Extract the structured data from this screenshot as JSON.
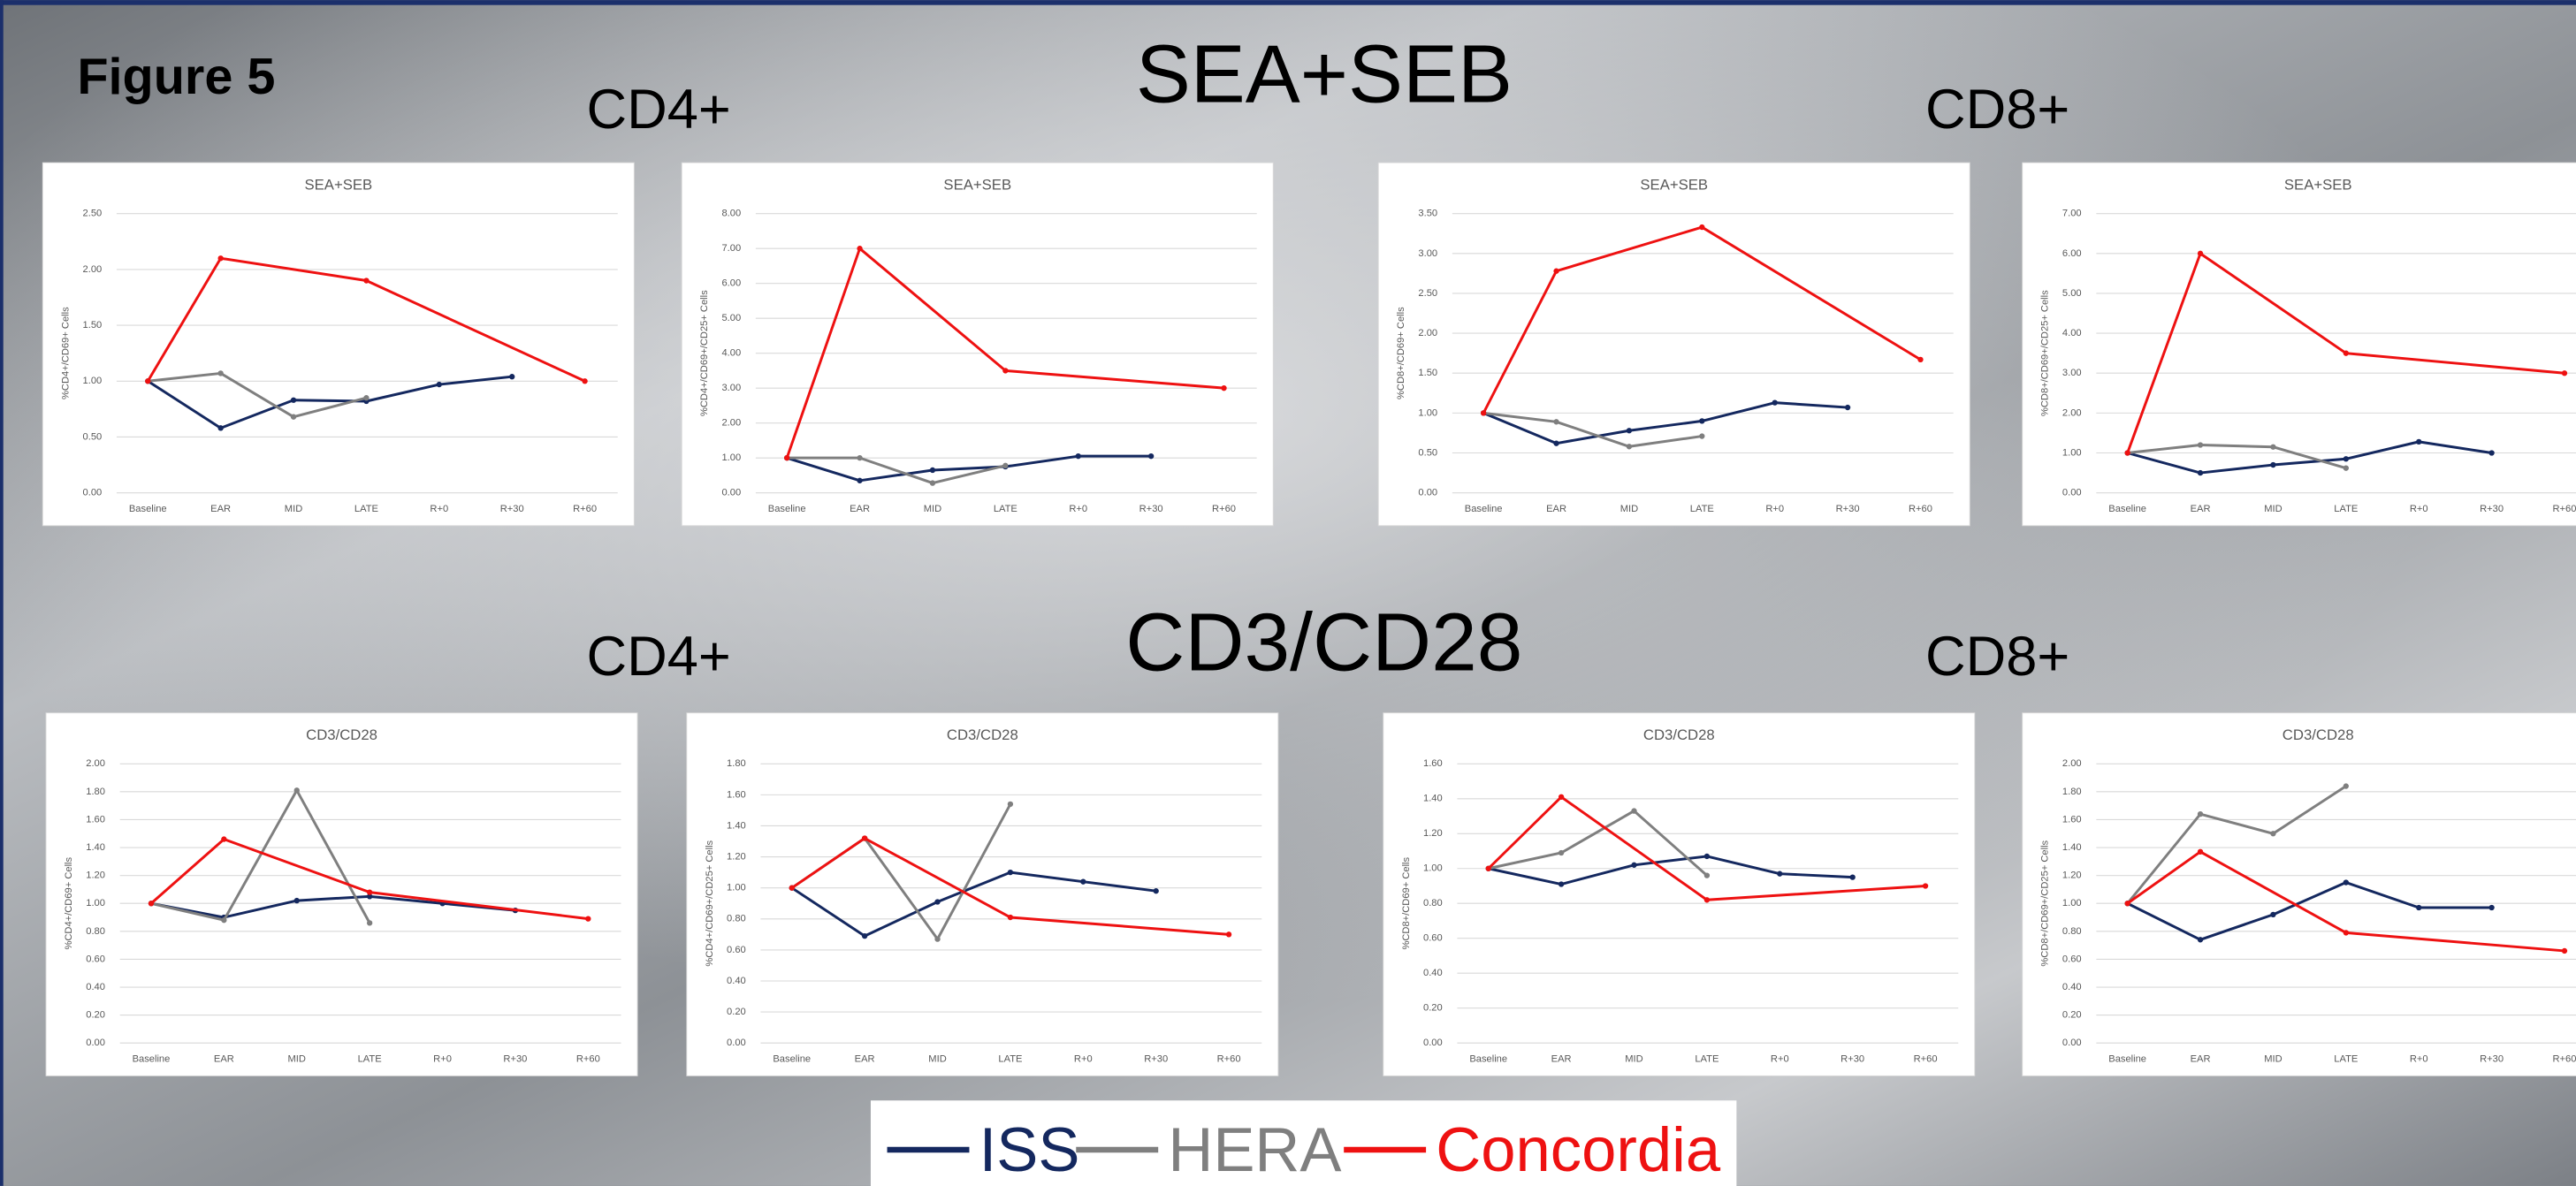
{
  "figure_label": "Figure 5",
  "sections": [
    {
      "heading": "SEA+SEB",
      "left": "CD4+",
      "right": "CD8+"
    },
    {
      "heading": "CD3/CD28",
      "left": "CD4+",
      "right": "CD8+"
    }
  ],
  "legend": [
    {
      "name": "ISS",
      "color": "#14285f"
    },
    {
      "name": "HERA",
      "color": "#7f7f7f"
    },
    {
      "name": "Concordia",
      "color": "#ee1111"
    }
  ],
  "chart_data": [
    {
      "type": "line",
      "title": "SEA+SEB",
      "ylabel": "%CD4+/CD69+ Cells",
      "grid": true,
      "categories": [
        "Baseline",
        "EAR",
        "MID",
        "LATE",
        "R+0",
        "R+30",
        "R+60"
      ],
      "series": [
        {
          "values": [
            1.0,
            0.58,
            0.83,
            0.82,
            0.97,
            1.04,
            null
          ]
        },
        {
          "values": [
            1.0,
            1.07,
            0.68,
            0.85,
            null,
            null,
            null
          ]
        },
        {
          "values": [
            1.0,
            2.1,
            null,
            1.9,
            null,
            null,
            1.0
          ]
        }
      ],
      "ylim": [
        0,
        2.5
      ],
      "yticks": [
        {
          "value": 0,
          "label": "0.00"
        },
        {
          "value": 0.5,
          "label": "0.50"
        },
        {
          "value": 1,
          "label": "1.00"
        },
        {
          "value": 1.5,
          "label": "1.50"
        },
        {
          "value": 2,
          "label": "2.00"
        },
        {
          "value": 2.5,
          "label": "2.50"
        }
      ]
    },
    {
      "type": "line",
      "title": "SEA+SEB",
      "ylabel": "%CD4+/CD69+/CD25+ Cells",
      "grid": true,
      "categories": [
        "Baseline",
        "EAR",
        "MID",
        "LATE",
        "R+0",
        "R+30",
        "R+60"
      ],
      "series": [
        {
          "values": [
            1.0,
            0.35,
            0.65,
            0.75,
            1.05,
            1.05,
            null
          ]
        },
        {
          "values": [
            1.0,
            1.0,
            0.28,
            0.78,
            null,
            null,
            null
          ]
        },
        {
          "values": [
            1.0,
            7.0,
            null,
            3.5,
            null,
            null,
            3.0
          ]
        }
      ],
      "ylim": [
        0,
        8
      ],
      "yticks": [
        {
          "value": 0,
          "label": "0.00"
        },
        {
          "value": 1,
          "label": "1.00"
        },
        {
          "value": 2,
          "label": "2.00"
        },
        {
          "value": 3,
          "label": "3.00"
        },
        {
          "value": 4,
          "label": "4.00"
        },
        {
          "value": 5,
          "label": "5.00"
        },
        {
          "value": 6,
          "label": "6.00"
        },
        {
          "value": 7,
          "label": "7.00"
        },
        {
          "value": 8,
          "label": "8.00"
        }
      ]
    },
    {
      "type": "line",
      "title": "SEA+SEB",
      "ylabel": "%CD8+/CD69+ Cells",
      "grid": true,
      "categories": [
        "Baseline",
        "EAR",
        "MID",
        "LATE",
        "R+0",
        "R+30",
        "R+60"
      ],
      "series": [
        {
          "values": [
            1.0,
            0.62,
            0.78,
            0.9,
            1.13,
            1.07,
            null
          ]
        },
        {
          "values": [
            1.0,
            0.89,
            0.58,
            0.71,
            null,
            null,
            null
          ]
        },
        {
          "values": [
            1.0,
            2.78,
            null,
            3.33,
            null,
            null,
            1.67
          ]
        }
      ],
      "ylim": [
        0,
        3.5
      ],
      "yticks": [
        {
          "value": 0,
          "label": "0.00"
        },
        {
          "value": 0.5,
          "label": "0.50"
        },
        {
          "value": 1,
          "label": "1.00"
        },
        {
          "value": 1.5,
          "label": "1.50"
        },
        {
          "value": 2,
          "label": "2.00"
        },
        {
          "value": 2.5,
          "label": "2.50"
        },
        {
          "value": 3,
          "label": "3.00"
        },
        {
          "value": 3.5,
          "label": "3.50"
        }
      ]
    },
    {
      "type": "line",
      "title": "SEA+SEB",
      "ylabel": "%CD8+/CD69+/CD25+ Cells",
      "grid": true,
      "categories": [
        "Baseline",
        "EAR",
        "MID",
        "LATE",
        "R+0",
        "R+30",
        "R+60"
      ],
      "series": [
        {
          "values": [
            1.0,
            0.5,
            0.7,
            0.85,
            1.28,
            1.0,
            null
          ]
        },
        {
          "values": [
            1.0,
            1.2,
            1.15,
            0.62,
            null,
            null,
            null
          ]
        },
        {
          "values": [
            1.0,
            6.0,
            null,
            3.5,
            null,
            null,
            3.0
          ]
        }
      ],
      "ylim": [
        0,
        7
      ],
      "yticks": [
        {
          "value": 0,
          "label": "0.00"
        },
        {
          "value": 1,
          "label": "1.00"
        },
        {
          "value": 2,
          "label": "2.00"
        },
        {
          "value": 3,
          "label": "3.00"
        },
        {
          "value": 4,
          "label": "4.00"
        },
        {
          "value": 5,
          "label": "5.00"
        },
        {
          "value": 6,
          "label": "6.00"
        },
        {
          "value": 7,
          "label": "7.00"
        }
      ]
    },
    {
      "type": "line",
      "title": "CD3/CD28",
      "ylabel": "%CD4+/CD69+ Cells",
      "grid": true,
      "categories": [
        "Baseline",
        "EAR",
        "MID",
        "LATE",
        "R+0",
        "R+30",
        "R+60"
      ],
      "series": [
        {
          "values": [
            1.0,
            0.9,
            1.02,
            1.05,
            1.0,
            0.95,
            null
          ]
        },
        {
          "values": [
            1.0,
            0.88,
            1.81,
            0.86,
            null,
            null,
            null
          ]
        },
        {
          "values": [
            1.0,
            1.46,
            null,
            1.08,
            null,
            null,
            0.89
          ]
        }
      ],
      "ylim": [
        0,
        2
      ],
      "yticks": [
        {
          "value": 0,
          "label": "0.00"
        },
        {
          "value": 0.2,
          "label": "0.20"
        },
        {
          "value": 0.4,
          "label": "0.40"
        },
        {
          "value": 0.6,
          "label": "0.60"
        },
        {
          "value": 0.8,
          "label": "0.80"
        },
        {
          "value": 1,
          "label": "1.00"
        },
        {
          "value": 1.2,
          "label": "1.20"
        },
        {
          "value": 1.4,
          "label": "1.40"
        },
        {
          "value": 1.6,
          "label": "1.60"
        },
        {
          "value": 1.8,
          "label": "1.80"
        },
        {
          "value": 2,
          "label": "2.00"
        }
      ]
    },
    {
      "type": "line",
      "title": "CD3/CD28",
      "ylabel": "%CD4+/CD69+/CD25+ Cells",
      "grid": true,
      "categories": [
        "Baseline",
        "EAR",
        "MID",
        "LATE",
        "R+0",
        "R+30",
        "R+60"
      ],
      "series": [
        {
          "values": [
            1.0,
            0.69,
            0.91,
            1.1,
            1.04,
            0.98,
            null
          ]
        },
        {
          "values": [
            1.0,
            1.32,
            0.67,
            1.54,
            null,
            null,
            null
          ]
        },
        {
          "values": [
            1.0,
            1.32,
            null,
            0.81,
            null,
            null,
            0.7
          ]
        }
      ],
      "ylim": [
        0,
        1.8
      ],
      "yticks": [
        {
          "value": 0,
          "label": "0.00"
        },
        {
          "value": 0.2,
          "label": "0.20"
        },
        {
          "value": 0.4,
          "label": "0.40"
        },
        {
          "value": 0.6,
          "label": "0.60"
        },
        {
          "value": 0.8,
          "label": "0.80"
        },
        {
          "value": 1,
          "label": "1.00"
        },
        {
          "value": 1.2,
          "label": "1.20"
        },
        {
          "value": 1.4,
          "label": "1.40"
        },
        {
          "value": 1.6,
          "label": "1.60"
        },
        {
          "value": 1.8,
          "label": "1.80"
        }
      ]
    },
    {
      "type": "line",
      "title": "CD3/CD28",
      "ylabel": "%CD8+/CD69+ Cells",
      "grid": true,
      "categories": [
        "Baseline",
        "EAR",
        "MID",
        "LATE",
        "R+0",
        "R+30",
        "R+60"
      ],
      "series": [
        {
          "values": [
            1.0,
            0.91,
            1.02,
            1.07,
            0.97,
            0.95,
            null
          ]
        },
        {
          "values": [
            1.0,
            1.09,
            1.33,
            0.96,
            null,
            null,
            null
          ]
        },
        {
          "values": [
            1.0,
            1.41,
            null,
            0.82,
            null,
            null,
            0.9
          ]
        }
      ],
      "ylim": [
        0,
        1.6
      ],
      "yticks": [
        {
          "value": 0,
          "label": "0.00"
        },
        {
          "value": 0.2,
          "label": "0.20"
        },
        {
          "value": 0.4,
          "label": "0.40"
        },
        {
          "value": 0.6,
          "label": "0.60"
        },
        {
          "value": 0.8,
          "label": "0.80"
        },
        {
          "value": 1,
          "label": "1.00"
        },
        {
          "value": 1.2,
          "label": "1.20"
        },
        {
          "value": 1.4,
          "label": "1.40"
        },
        {
          "value": 1.6,
          "label": "1.60"
        }
      ]
    },
    {
      "type": "line",
      "title": "CD3/CD28",
      "ylabel": "%CD8+/CD69+/CD25+ Cells",
      "grid": true,
      "categories": [
        "Baseline",
        "EAR",
        "MID",
        "LATE",
        "R+0",
        "R+30",
        "R+60"
      ],
      "series": [
        {
          "values": [
            1.0,
            0.74,
            0.92,
            1.15,
            0.97,
            0.97,
            null
          ]
        },
        {
          "values": [
            1.0,
            1.64,
            1.5,
            1.84,
            null,
            null,
            null
          ]
        },
        {
          "values": [
            1.0,
            1.37,
            null,
            0.79,
            null,
            null,
            0.66
          ]
        }
      ],
      "ylim": [
        0,
        2
      ],
      "yticks": [
        {
          "value": 0,
          "label": "0.00"
        },
        {
          "value": 0.2,
          "label": "0.20"
        },
        {
          "value": 0.4,
          "label": "0.40"
        },
        {
          "value": 0.6,
          "label": "0.60"
        },
        {
          "value": 0.8,
          "label": "0.80"
        },
        {
          "value": 1,
          "label": "1.00"
        },
        {
          "value": 1.2,
          "label": "1.20"
        },
        {
          "value": 1.4,
          "label": "1.40"
        },
        {
          "value": 1.6,
          "label": "1.60"
        },
        {
          "value": 1.8,
          "label": "1.80"
        },
        {
          "value": 2,
          "label": "2.00"
        }
      ]
    }
  ]
}
